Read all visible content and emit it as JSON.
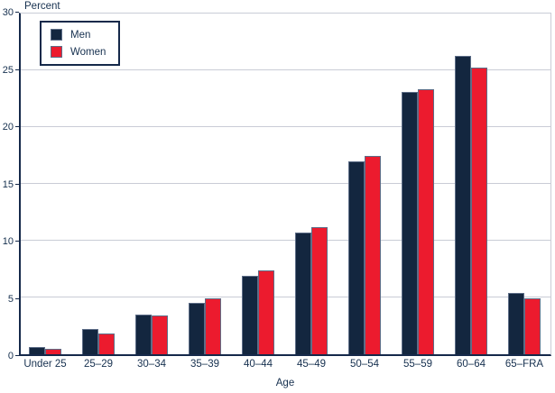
{
  "chart_data": {
    "type": "bar",
    "title": "",
    "xlabel": "Age",
    "ylabel": "Percent",
    "ylim": [
      0,
      30
    ],
    "y_ticks": [
      0,
      5,
      10,
      15,
      20,
      25,
      30
    ],
    "grid": true,
    "legend_position": "upper-left-inside",
    "categories": [
      "Under 25",
      "25–29",
      "30–34",
      "35–39",
      "40–44",
      "45–49",
      "50–54",
      "55–59",
      "60–64",
      "65–FRA"
    ],
    "series": [
      {
        "name": "Men",
        "color": "#13263f",
        "values": [
          0.6,
          2.2,
          3.5,
          4.5,
          6.9,
          10.7,
          17.0,
          23.1,
          26.3,
          5.4
        ]
      },
      {
        "name": "Women",
        "color": "#ec1b2e",
        "values": [
          0.5,
          1.8,
          3.4,
          4.9,
          7.4,
          11.2,
          17.5,
          23.3,
          25.2,
          4.9
        ]
      }
    ]
  },
  "colors": {
    "men_bar": "#13263f",
    "women_bar": "#ec1b2e",
    "axis": "#15294a",
    "gridline": "#c9ccd6",
    "text": "#16304f"
  }
}
